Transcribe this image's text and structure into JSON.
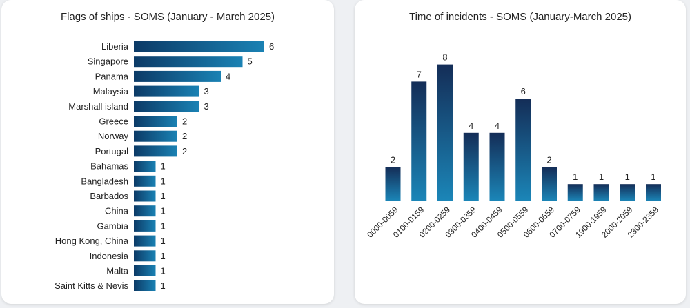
{
  "chart_data": [
    {
      "type": "bar",
      "orientation": "horizontal",
      "title": "Flags of ships - SOMS (January - March 2025)",
      "categories": [
        "Liberia",
        "Singapore",
        "Panama",
        "Malaysia",
        "Marshall island",
        "Greece",
        "Norway",
        "Portugal",
        "Bahamas",
        "Bangladesh",
        "Barbados",
        "China",
        "Gambia",
        "Hong Kong, China",
        "Indonesia",
        "Malta",
        "Saint Kitts & Nevis"
      ],
      "values": [
        6,
        5,
        4,
        3,
        3,
        2,
        2,
        2,
        1,
        1,
        1,
        1,
        1,
        1,
        1,
        1,
        1
      ],
      "data_labels": true,
      "grid": false,
      "colors": {
        "bar_dark": "#0c3a66",
        "bar_light": "#1a82b4"
      }
    },
    {
      "type": "bar",
      "orientation": "vertical",
      "title": "Time of incidents - SOMS (January-March 2025)",
      "categories": [
        "0000-0059",
        "0100-0159",
        "0200-0259",
        "0300-0359",
        "0400-0459",
        "0500-0559",
        "0600-0659",
        "0700-0759",
        "1900-1959",
        "2000-2059",
        "2300-2359"
      ],
      "values": [
        2,
        7,
        8,
        4,
        4,
        6,
        2,
        1,
        1,
        1,
        1
      ],
      "data_labels": true,
      "grid": false,
      "colors": {
        "bar_dark": "#142d57",
        "bar_light": "#1b86b8"
      }
    }
  ]
}
